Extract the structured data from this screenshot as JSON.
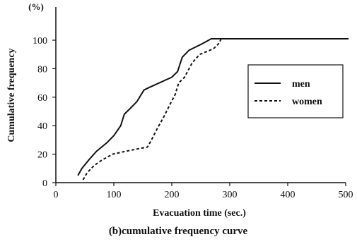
{
  "chart_data": {
    "type": "line",
    "xlabel": "Evacuation time (sec.)",
    "ylabel": "Cumulative frequency",
    "y_unit": "(%)",
    "caption": "(b)cumulative frequency curve",
    "xlim": [
      0,
      500
    ],
    "ylim": [
      0,
      100
    ],
    "xticks": [
      0,
      100,
      200,
      300,
      400,
      500
    ],
    "yticks": [
      0,
      20,
      40,
      60,
      80,
      100
    ],
    "grid": false,
    "legend_position": "right",
    "series": [
      {
        "name": "men",
        "style": "solid",
        "color": "#111111",
        "points": [
          [
            38,
            5
          ],
          [
            45,
            10
          ],
          [
            57,
            16
          ],
          [
            70,
            22
          ],
          [
            88,
            28
          ],
          [
            100,
            33
          ],
          [
            112,
            40
          ],
          [
            118,
            48
          ],
          [
            128,
            52
          ],
          [
            140,
            57
          ],
          [
            152,
            65
          ],
          [
            162,
            67
          ],
          [
            200,
            74
          ],
          [
            210,
            78
          ],
          [
            218,
            88
          ],
          [
            230,
            93
          ],
          [
            250,
            97
          ],
          [
            268,
            101
          ],
          [
            505,
            101
          ]
        ]
      },
      {
        "name": "women",
        "style": "dashed",
        "color": "#111111",
        "points": [
          [
            47,
            2
          ],
          [
            54,
            7
          ],
          [
            66,
            12
          ],
          [
            80,
            16
          ],
          [
            98,
            20
          ],
          [
            120,
            22
          ],
          [
            145,
            24
          ],
          [
            158,
            25
          ],
          [
            165,
            30
          ],
          [
            175,
            38
          ],
          [
            186,
            46
          ],
          [
            197,
            55
          ],
          [
            206,
            62
          ],
          [
            212,
            70
          ],
          [
            222,
            74
          ],
          [
            235,
            84
          ],
          [
            248,
            90
          ],
          [
            272,
            94
          ],
          [
            282,
            98
          ],
          [
            285,
            101
          ]
        ]
      }
    ]
  }
}
